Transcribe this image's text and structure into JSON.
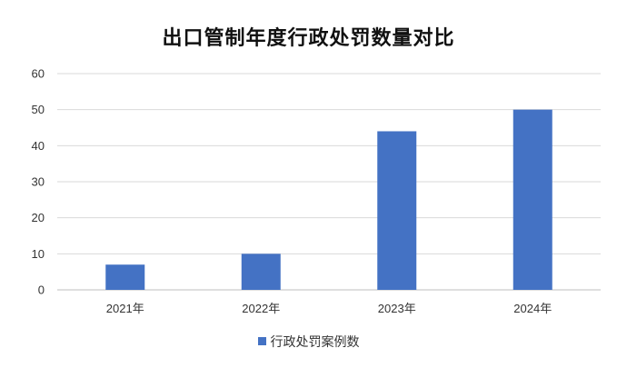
{
  "chart_data": {
    "type": "bar",
    "title": "出口管制年度行政处罚数量对比",
    "categories": [
      "2021年",
      "2022年",
      "2023年",
      "2024年"
    ],
    "series": [
      {
        "name": "行政处罚案例数",
        "values": [
          7,
          10,
          44,
          50
        ],
        "color": "#4472C4"
      }
    ],
    "xlabel": "",
    "ylabel": "",
    "ylim": [
      0,
      60
    ],
    "yticks": [
      0,
      10,
      20,
      30,
      40,
      50,
      60
    ],
    "grid": true,
    "legend": "bottom"
  }
}
